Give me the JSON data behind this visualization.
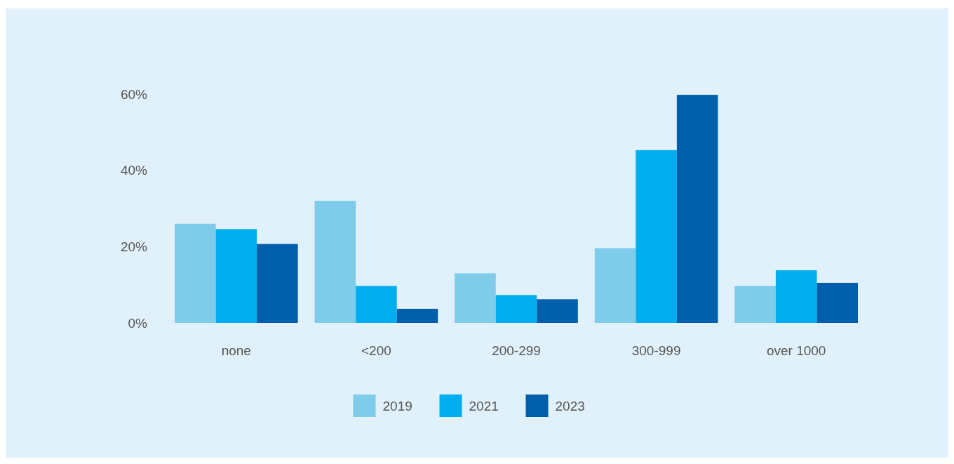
{
  "chart_data": {
    "type": "bar",
    "categories": [
      "none",
      "<200",
      "200-299",
      "300-999",
      "over 1000"
    ],
    "series": [
      {
        "name": "2019",
        "color": "#7fcbea",
        "values": [
          26,
          32,
          13,
          19.6,
          9.7
        ]
      },
      {
        "name": "2021",
        "color": "#00adee",
        "values": [
          24.6,
          9.7,
          7.3,
          45.3,
          13.8
        ]
      },
      {
        "name": "2023",
        "color": "#005eab",
        "values": [
          20.7,
          3.7,
          6.2,
          59.8,
          10.5
        ]
      }
    ],
    "ylim": [
      0,
      60
    ],
    "yticks": [
      {
        "value": 0,
        "label": "0%"
      },
      {
        "value": 20,
        "label": "20%"
      },
      {
        "value": 40,
        "label": "40%"
      },
      {
        "value": 60,
        "label": "60%"
      }
    ],
    "grid": false,
    "legend": "bottom"
  }
}
